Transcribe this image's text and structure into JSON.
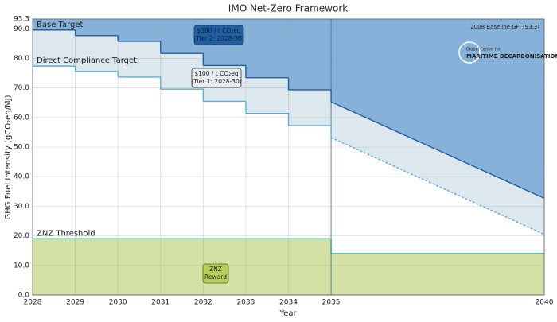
{
  "chart_data": {
    "type": "step-line",
    "title": "IMO Net-Zero Framework",
    "xlabel": "Year",
    "ylabel": "GHG Fuel Intensity (gCO₂eq/MJ)",
    "x": [
      2028,
      2029,
      2030,
      2031,
      2032,
      2033,
      2034,
      2035,
      2040
    ],
    "series": [
      {
        "name": "Base Target",
        "color": "#1f5fa6",
        "fill": "#86b2da",
        "values": [
          89.6,
          87.7,
          85.8,
          81.7,
          77.6,
          73.5,
          69.4,
          65.3,
          32.7
        ]
      },
      {
        "name": "Direct Compliance Target",
        "color": "#5aaed6",
        "label_color": "#9fd0ea",
        "fill": "#dde8ee",
        "last_segment_style": "dashed",
        "values": [
          77.4,
          75.6,
          73.7,
          69.6,
          65.5,
          61.4,
          57.3,
          53.2,
          20.5
        ]
      },
      {
        "name": "ZNZ Threshold",
        "color": "#2aa0a0",
        "fill": "#d3e0a3",
        "values": [
          19,
          19,
          19,
          19,
          19,
          19,
          19,
          14,
          14
        ]
      }
    ],
    "xlim": [
      2028,
      2040
    ],
    "xticks": [
      2028,
      2029,
      2030,
      2031,
      2032,
      2033,
      2034,
      2035,
      2040
    ],
    "ylim": [
      0,
      93.3
    ],
    "yticks": [
      {
        "value": 0,
        "label": "0.0"
      },
      {
        "value": 10,
        "label": "10.0"
      },
      {
        "value": 20,
        "label": "20.0"
      },
      {
        "value": 30,
        "label": "30.0"
      },
      {
        "value": 40,
        "label": "40.0"
      },
      {
        "value": 50,
        "label": "50.0"
      },
      {
        "value": 60,
        "label": "60.0"
      },
      {
        "value": 70,
        "label": "70.0"
      },
      {
        "value": 80,
        "label": "80.0"
      },
      {
        "value": 90,
        "label": "90.0"
      },
      93.3
    ],
    "grid": true,
    "baseline": {
      "value": 93.3,
      "label": "2008 Baseline GFI (93.3)"
    },
    "annotations": [
      {
        "lines": [
          "$380 / t CO₂eq",
          "(Tier 2: 2028-30)"
        ]
      },
      {
        "lines": [
          "$100 / t CO₂eq",
          "(Tier 1: 2028-30)"
        ]
      },
      {
        "lines": [
          "ZNZ",
          "Reward"
        ]
      }
    ],
    "logo": [
      "Global Centre for",
      "MARITIME DECARBONISATION"
    ]
  }
}
